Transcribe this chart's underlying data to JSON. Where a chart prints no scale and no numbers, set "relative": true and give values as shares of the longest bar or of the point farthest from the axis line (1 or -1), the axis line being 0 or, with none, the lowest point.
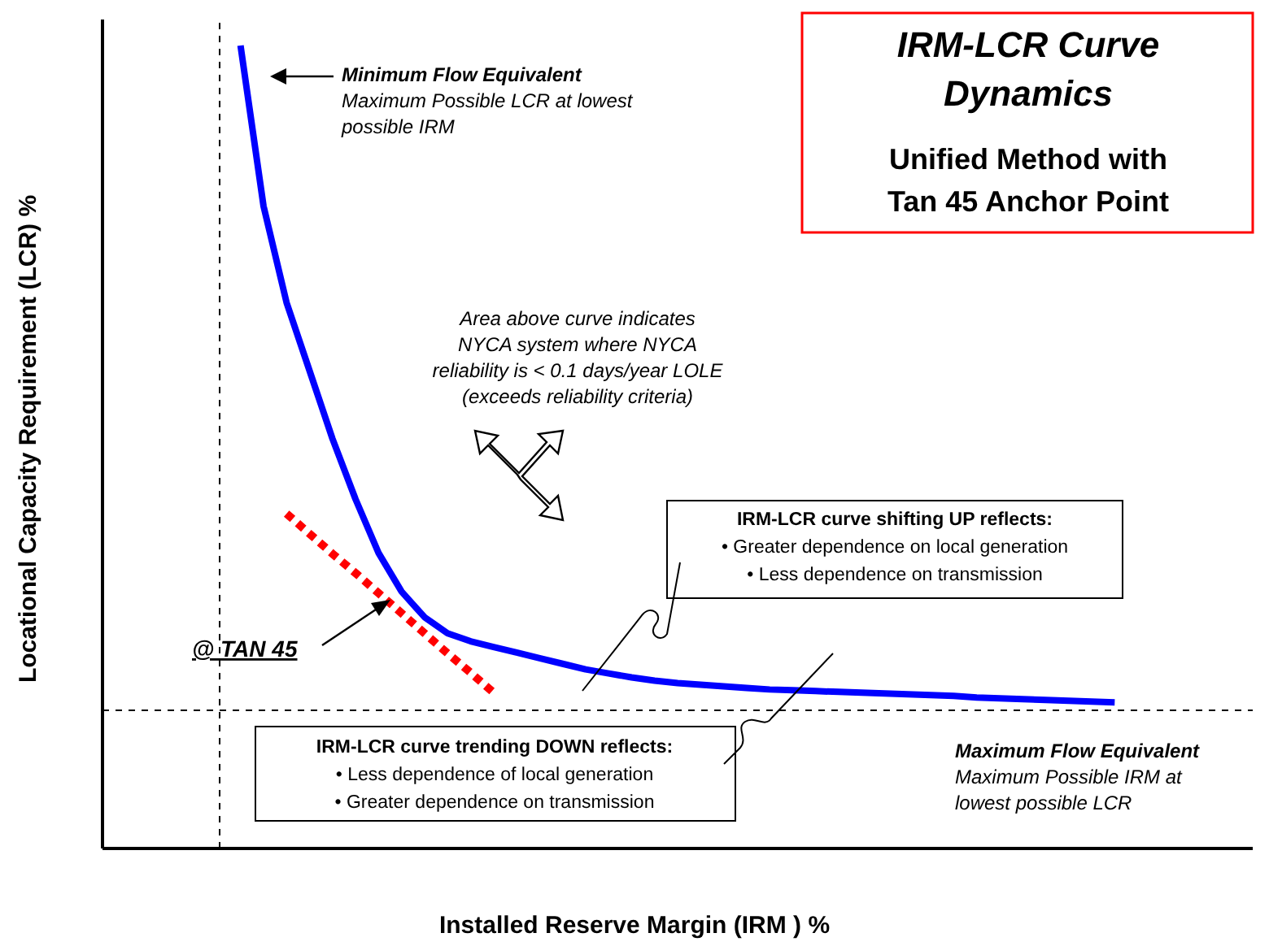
{
  "chart_data": {
    "type": "line",
    "relative": true,
    "title": "IRM-LCR Curve\nDynamics",
    "subtitle": "Unified Method with\nTan 45 Anchor Point",
    "xlabel": "Installed Reserve Margin (IRM ) %",
    "ylabel": "Locational Capacity Requirement (LCR) %",
    "marker": "none",
    "categories": [
      null,
      null,
      null,
      null,
      null,
      null,
      null,
      null,
      null,
      null,
      null,
      null,
      null,
      null,
      null,
      null,
      null,
      null,
      null,
      null,
      null,
      null,
      null,
      null,
      null,
      null,
      null,
      null,
      null,
      null,
      null,
      null,
      null,
      null,
      null,
      null,
      null,
      null,
      null,
      null,
      null,
      null,
      null,
      null,
      null,
      null,
      null,
      null,
      null,
      null,
      null
    ],
    "series": [
      {
        "color": "#0000ff",
        "line_style": "solid",
        "values": [
          null,
          null,
          null,
          null,
          null,
          null,
          1.0,
          0.8,
          0.68,
          0.595,
          0.51,
          0.435,
          0.368,
          0.32,
          0.288,
          0.268,
          0.258,
          0.251,
          0.244,
          0.237,
          0.23,
          0.223,
          0.218,
          0.213,
          0.209,
          0.206,
          0.204,
          0.202,
          0.2,
          0.198,
          0.197,
          0.196,
          0.195,
          0.194,
          0.193,
          0.192,
          0.191,
          0.19,
          0.188,
          0.187,
          0.186,
          0.185,
          0.184,
          0.183,
          0.182,
          null,
          null,
          null,
          null,
          null,
          null
        ]
      },
      {
        "color": "#ff0000",
        "line_style": "dotted",
        "values": [
          null,
          null,
          null,
          null,
          null,
          null,
          null,
          null,
          0.417,
          0.392,
          0.367,
          0.343,
          0.318,
          0.293,
          0.268,
          0.243,
          0.219,
          0.194,
          null,
          null,
          null,
          null,
          null,
          null,
          null,
          null,
          null,
          null,
          null,
          null,
          null,
          null,
          null,
          null,
          null,
          null,
          null,
          null,
          null,
          null,
          null,
          null,
          null,
          null,
          null,
          null,
          null,
          null,
          null,
          null,
          null
        ]
      }
    ],
    "ref_lines": [
      {
        "axis": "y",
        "value": 0.172,
        "line_style": "dashed",
        "color": "#000000"
      }
    ],
    "annotations": [
      "Minimum Flow Equivalent",
      "Maximum Possible LCR at lowest\npossible IRM",
      "Area above curve indicates\nNYCA system where NYCA\nreliability is < 0.1 days/year LOLE\n(exceeds reliability criteria)",
      "IRM-LCR curve shifting UP reflects:\n• Greater dependence on local generation\n• Less dependence on transmission",
      "IRM-LCR curve trending DOWN reflects:\n• Less dependence of local generation\n• Greater dependence on transmission",
      "@ TAN 45",
      "Maximum Flow Equivalent",
      "Maximum Possible IRM at\nlowest possible LCR"
    ]
  }
}
